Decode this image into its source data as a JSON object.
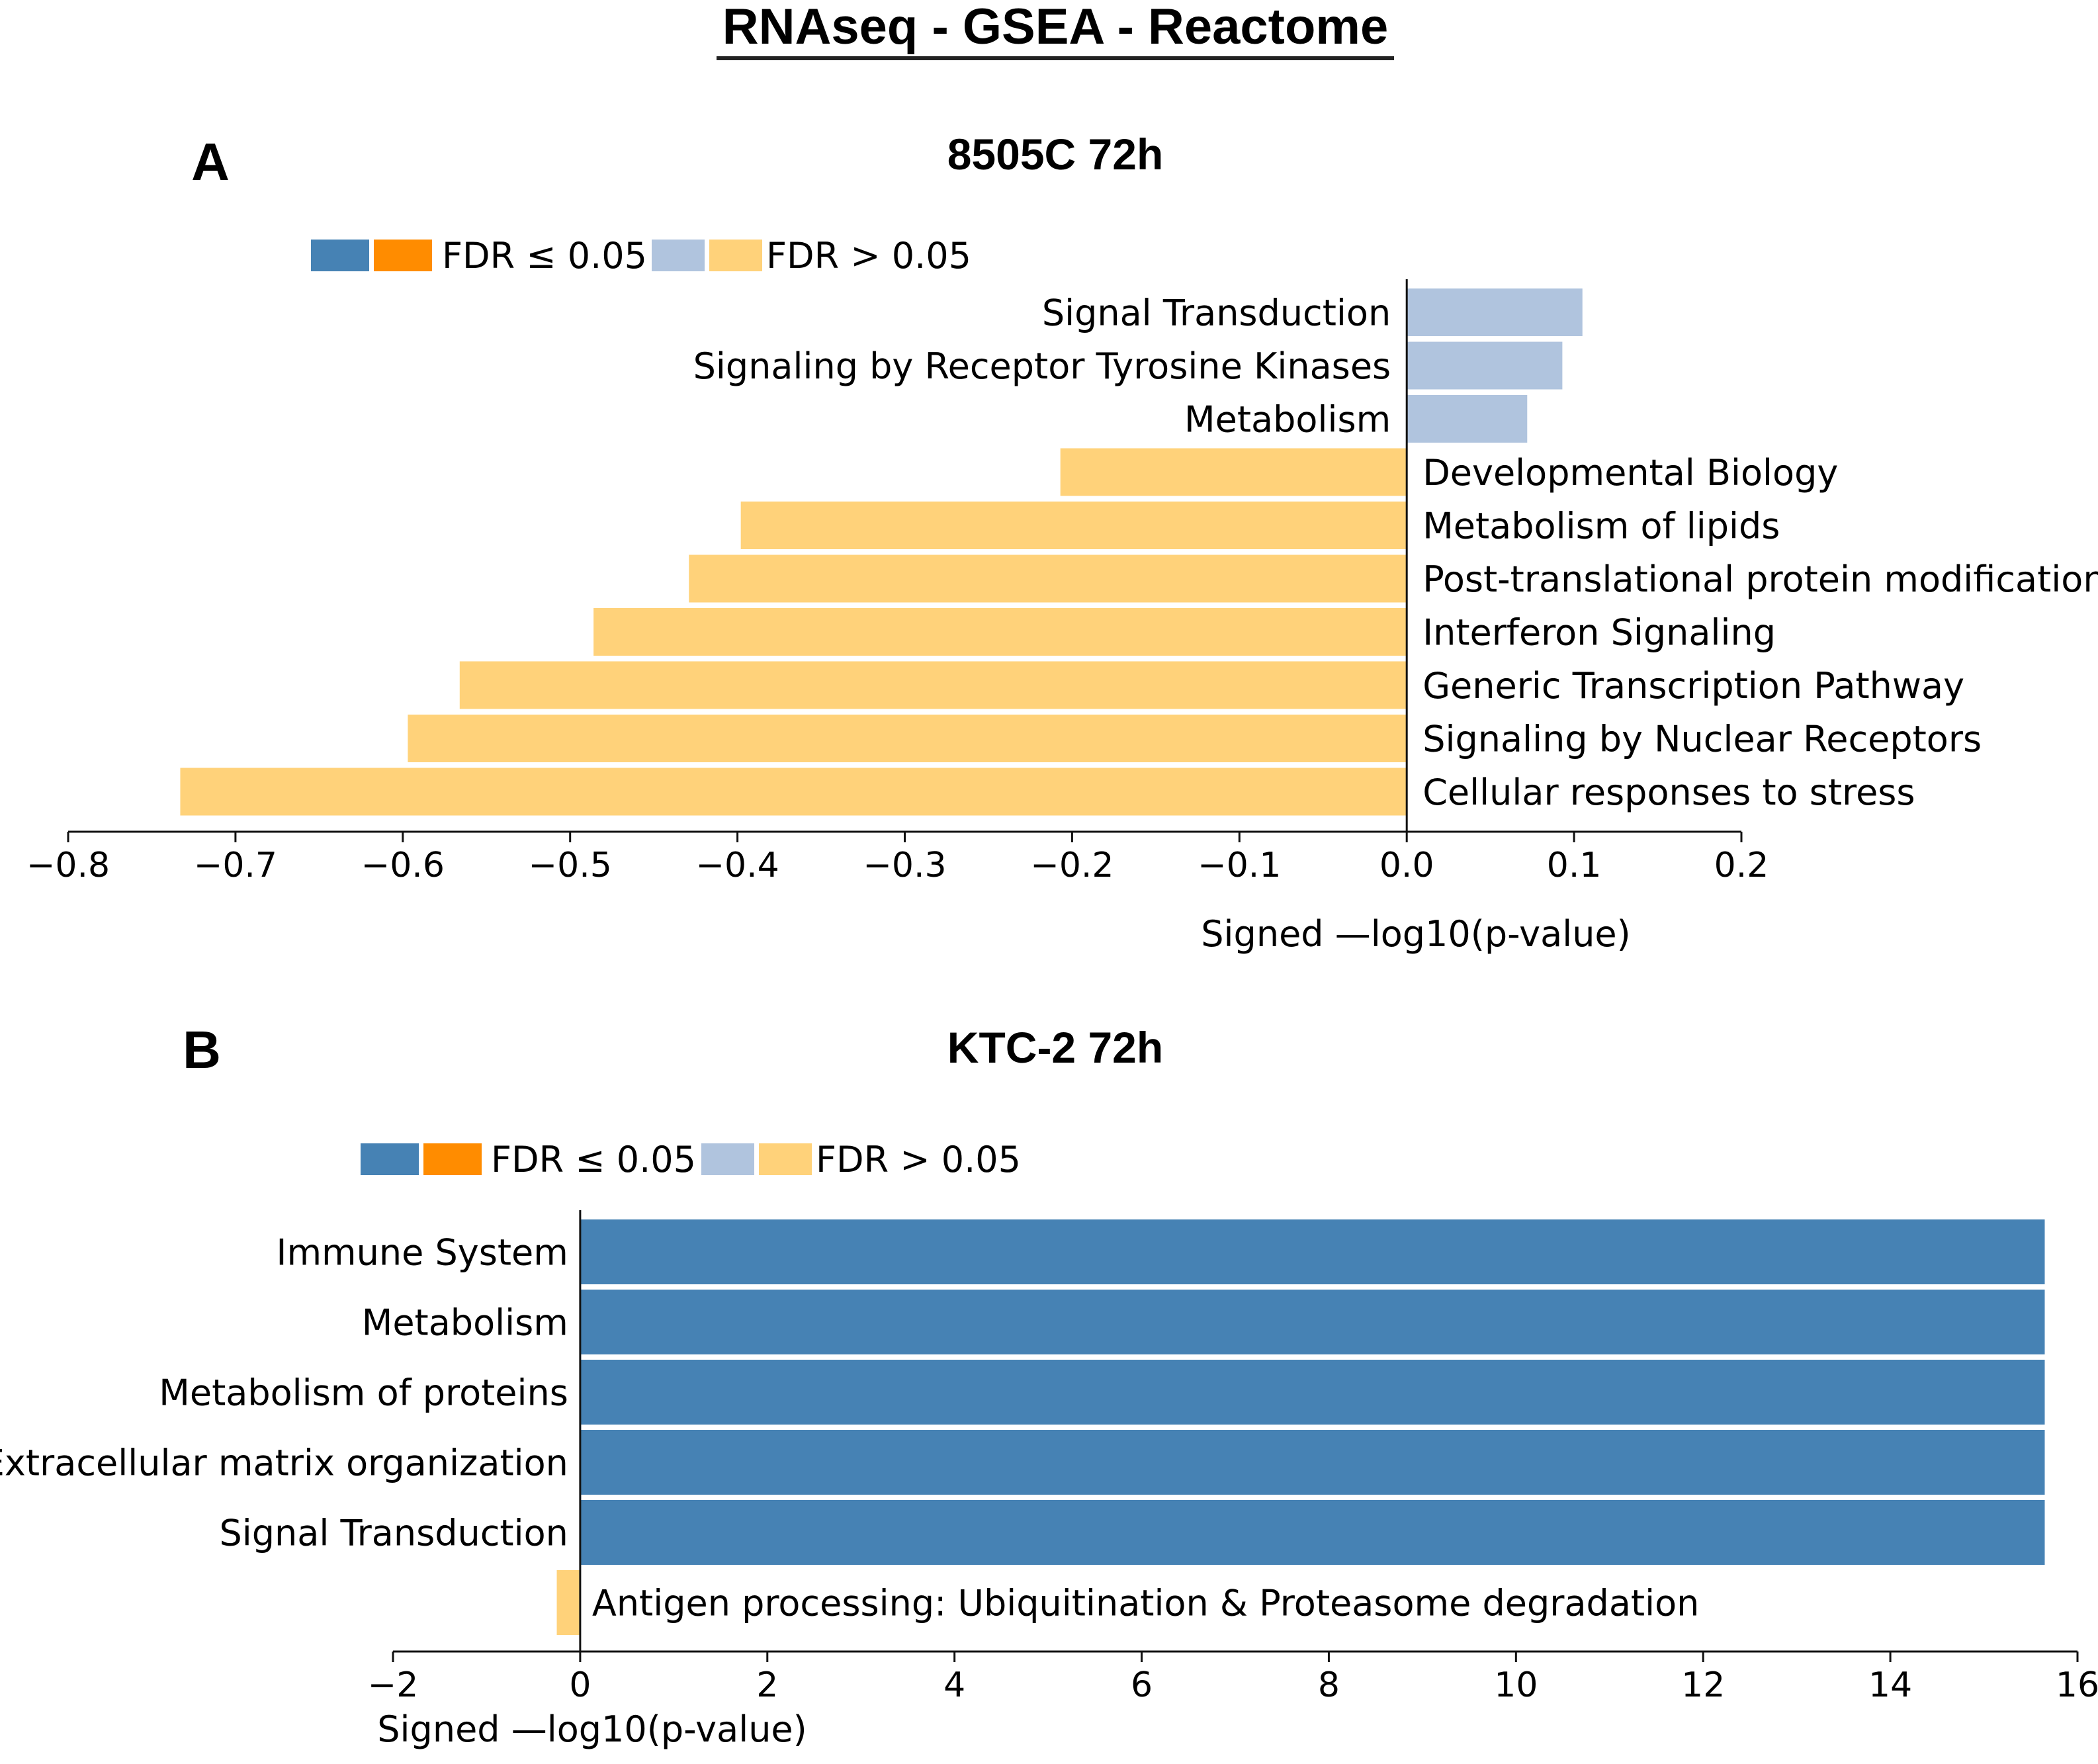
{
  "figure_title": "RNAseq - GSEA - Reactome",
  "colors": {
    "up_sig": "#4682b4",
    "down_sig": "#ff8c00",
    "up_nonsig": "#b0c4de",
    "down_nonsig": "#ffd27a"
  },
  "legend": {
    "sig_label": "FDR ≤ 0.05",
    "nonsig_label": "FDR > 0.05"
  },
  "chart_data": [
    {
      "type": "bar",
      "orientation": "horizontal",
      "panel": "A",
      "title": "8505C 72h",
      "xlabel": "Signed —log10(p-value)",
      "xlim": [
        -0.8,
        0.2
      ],
      "xticks": [
        -0.8,
        -0.7,
        -0.6,
        -0.5,
        -0.4,
        -0.3,
        -0.2,
        -0.1,
        0.0,
        0.1,
        0.2
      ],
      "xtick_labels": [
        "−0.8",
        "−0.7",
        "−0.6",
        "−0.5",
        "−0.4",
        "−0.3",
        "−0.2",
        "−0.1",
        "0.0",
        "0.1",
        "0.2"
      ],
      "legend_position": "top-left",
      "categories": [
        "Signal Transduction",
        "Signaling by Receptor Tyrosine Kinases",
        "Metabolism",
        "Developmental Biology",
        "Metabolism of lipids",
        "Post-translational protein modification",
        "Interferon Signaling",
        "Generic Transcription Pathway",
        "Signaling by Nuclear Receptors",
        "Cellular responses to stress"
      ],
      "values": [
        0.105,
        0.093,
        0.072,
        -0.207,
        -0.398,
        -0.429,
        -0.486,
        -0.566,
        -0.597,
        -0.733
      ],
      "significant": [
        false,
        false,
        false,
        false,
        false,
        false,
        false,
        false,
        false,
        false
      ]
    },
    {
      "type": "bar",
      "orientation": "horizontal",
      "panel": "B",
      "title": "KTC-2 72h",
      "xlabel": "Signed —log10(p-value)",
      "xlim": [
        -2,
        16
      ],
      "xticks": [
        -2,
        0,
        2,
        4,
        6,
        8,
        10,
        12,
        14,
        16
      ],
      "xtick_labels": [
        "−2",
        "0",
        "2",
        "4",
        "6",
        "8",
        "10",
        "12",
        "14",
        "16"
      ],
      "legend_position": "top-left",
      "categories": [
        "Immune System",
        "Metabolism",
        "Metabolism of proteins",
        "Extracellular matrix organization",
        "Signal Transduction",
        "Antigen processing: Ubiquitination & Proteasome degradation"
      ],
      "values": [
        15.65,
        15.65,
        15.65,
        15.65,
        15.65,
        -0.25
      ],
      "significant": [
        true,
        true,
        true,
        true,
        true,
        false
      ]
    }
  ]
}
